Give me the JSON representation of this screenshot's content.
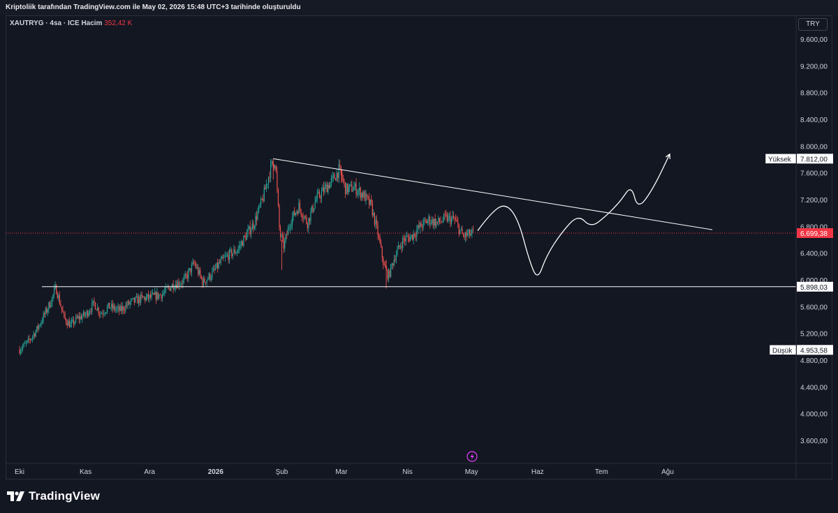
{
  "header": {
    "caption": "Kriptoliik tarafından TradingView.com ile May 02, 2026 15:48 UTC+3 tarihinde oluşturuldu"
  },
  "legend": {
    "symbol": "XAUTRYG · 4sa · ICE",
    "volume_label": "Hacim",
    "volume_value": "352,42 K"
  },
  "toolbar": {
    "currency": "TRY"
  },
  "branding": {
    "logo_text": "TradingView",
    "logo_icon": "tradingview-logo"
  },
  "colors": {
    "background": "#131722",
    "up": "#26a69a",
    "down": "#ef5350",
    "current_price": "#f23645",
    "drawing": "#ffffff",
    "axis_text": "#d1d4dc"
  },
  "chart_data": {
    "type": "candlestick",
    "title": "",
    "xlabel": "",
    "ylabel": "",
    "ylim": [
      3300,
      9900
    ],
    "x_tick_labels": [
      "Eki",
      "Kas",
      "Ara",
      "2026",
      "Şub",
      "Mar",
      "Nis",
      "May",
      "Haz",
      "Tem",
      "Ağu"
    ],
    "y_tick_labels": [
      "9.600,00",
      "9.200,00",
      "8.800,00",
      "8.400,00",
      "8.000,00",
      "7.600,00",
      "7.200,00",
      "6.800,00",
      "6.400,00",
      "6.000,00",
      "5.600,00",
      "5.200,00",
      "4.800,00",
      "4.400,00",
      "4.000,00",
      "3.600,00"
    ],
    "y_tick_values": [
      9600,
      9200,
      8800,
      8400,
      8000,
      7600,
      7200,
      6800,
      6400,
      6000,
      5600,
      5200,
      4800,
      4400,
      4000,
      3600
    ],
    "price_path": [
      [
        "2025-10-01",
        4960
      ],
      [
        "2025-10-05",
        5070
      ],
      [
        "2025-10-09",
        5250
      ],
      [
        "2025-10-13",
        5500
      ],
      [
        "2025-10-16",
        5700
      ],
      [
        "2025-10-18",
        5890
      ],
      [
        "2025-10-20",
        5650
      ],
      [
        "2025-10-22",
        5420
      ],
      [
        "2025-10-25",
        5320
      ],
      [
        "2025-10-28",
        5420
      ],
      [
        "2025-11-01",
        5480
      ],
      [
        "2025-11-05",
        5650
      ],
      [
        "2025-11-08",
        5500
      ],
      [
        "2025-11-12",
        5600
      ],
      [
        "2025-11-17",
        5540
      ],
      [
        "2025-11-22",
        5660
      ],
      [
        "2025-11-27",
        5720
      ],
      [
        "2025-12-02",
        5740
      ],
      [
        "2025-12-07",
        5790
      ],
      [
        "2025-12-12",
        5930
      ],
      [
        "2025-12-17",
        5980
      ],
      [
        "2025-12-22",
        6250
      ],
      [
        "2025-12-26",
        5960
      ],
      [
        "2025-12-30",
        6080
      ],
      [
        "2026-01-03",
        6250
      ],
      [
        "2026-01-07",
        6370
      ],
      [
        "2026-01-11",
        6440
      ],
      [
        "2026-01-15",
        6650
      ],
      [
        "2026-01-19",
        6850
      ],
      [
        "2026-01-23",
        7200
      ],
      [
        "2026-01-27",
        7700
      ],
      [
        "2026-01-29",
        7780
      ],
      [
        "2026-01-31",
        6700
      ],
      [
        "2026-02-02",
        6500
      ],
      [
        "2026-02-05",
        6880
      ],
      [
        "2026-02-09",
        7100
      ],
      [
        "2026-02-13",
        6850
      ],
      [
        "2026-02-17",
        7200
      ],
      [
        "2026-02-21",
        7350
      ],
      [
        "2026-02-25",
        7500
      ],
      [
        "2026-02-28",
        7650
      ],
      [
        "2026-03-03",
        7350
      ],
      [
        "2026-03-07",
        7380
      ],
      [
        "2026-03-11",
        7280
      ],
      [
        "2026-03-15",
        7100
      ],
      [
        "2026-03-18",
        6700
      ],
      [
        "2026-03-21",
        6200
      ],
      [
        "2026-03-23",
        6050
      ],
      [
        "2026-03-26",
        6350
      ],
      [
        "2026-03-30",
        6600
      ],
      [
        "2026-04-03",
        6650
      ],
      [
        "2026-04-07",
        6800
      ],
      [
        "2026-04-11",
        6900
      ],
      [
        "2026-04-15",
        6850
      ],
      [
        "2026-04-19",
        6920
      ],
      [
        "2026-04-23",
        6900
      ],
      [
        "2026-04-27",
        6650
      ],
      [
        "2026-05-02",
        6700
      ]
    ],
    "horizontal_lines": [
      {
        "label": "",
        "value": 5898.03,
        "value_text": "5.898,03"
      }
    ],
    "trendline": {
      "start": [
        "2026-01-28",
        7812
      ],
      "end": [
        "2026-08-22",
        6750
      ]
    },
    "projection_path": [
      [
        "2026-05-04",
        6740
      ],
      [
        "2026-05-10",
        7000
      ],
      [
        "2026-05-17",
        7150
      ],
      [
        "2026-05-23",
        6900
      ],
      [
        "2026-05-28",
        6300
      ],
      [
        "2026-06-01",
        5990
      ],
      [
        "2026-06-05",
        6350
      ],
      [
        "2026-06-12",
        6700
      ],
      [
        "2026-06-20",
        6980
      ],
      [
        "2026-06-26",
        6780
      ],
      [
        "2026-07-03",
        6950
      ],
      [
        "2026-07-10",
        7180
      ],
      [
        "2026-07-15",
        7420
      ],
      [
        "2026-07-18",
        7050
      ],
      [
        "2026-07-25",
        7350
      ],
      [
        "2026-08-02",
        7880
      ]
    ],
    "price_labels": {
      "high": {
        "label": "Yüksek",
        "value": "7.812,00"
      },
      "current": {
        "label": "",
        "value": "6.699,38",
        "numeric": 6699.38
      },
      "support": {
        "label": "",
        "value": "5.898,03"
      },
      "low": {
        "label": "Düşük",
        "value": "4.953,58"
      }
    },
    "legend_placement": "top-left",
    "grid": false
  }
}
